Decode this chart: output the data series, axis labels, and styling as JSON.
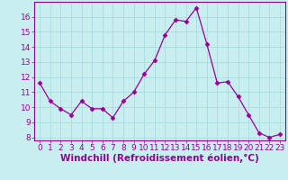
{
  "x": [
    0,
    1,
    2,
    3,
    4,
    5,
    6,
    7,
    8,
    9,
    10,
    11,
    12,
    13,
    14,
    15,
    16,
    17,
    18,
    19,
    20,
    21,
    22,
    23
  ],
  "y": [
    11.6,
    10.4,
    9.9,
    9.5,
    10.4,
    9.9,
    9.9,
    9.3,
    10.4,
    11.0,
    12.2,
    13.1,
    14.8,
    15.8,
    15.7,
    16.6,
    14.2,
    11.6,
    11.7,
    10.7,
    9.5,
    8.3,
    8.0,
    8.2
  ],
  "line_color": "#990099",
  "marker": "D",
  "marker_size": 2.5,
  "bg_color": "#c8eef0",
  "grid_color": "#aadddd",
  "xlabel": "Windchill (Refroidissement éolien,°C)",
  "xlim": [
    -0.5,
    23.5
  ],
  "ylim": [
    7.8,
    17.0
  ],
  "yticks": [
    8,
    9,
    10,
    11,
    12,
    13,
    14,
    15,
    16
  ],
  "xticks": [
    0,
    1,
    2,
    3,
    4,
    5,
    6,
    7,
    8,
    9,
    10,
    11,
    12,
    13,
    14,
    15,
    16,
    17,
    18,
    19,
    20,
    21,
    22,
    23
  ],
  "tick_color": "#990099",
  "label_color": "#990099",
  "tick_fontsize": 6.5,
  "xlabel_fontsize": 7.5
}
